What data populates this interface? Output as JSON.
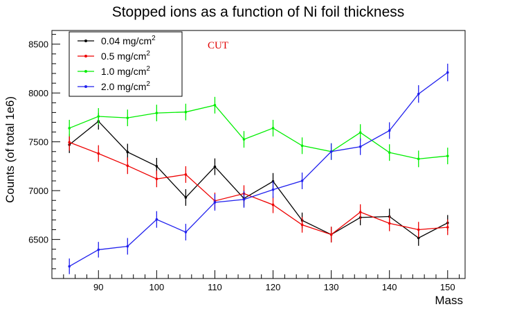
{
  "chart_data": {
    "type": "line",
    "title": "Stopped ions as a function of Ni foil thickness",
    "xlabel": "Mass",
    "ylabel": "Counts (of total 1e6)",
    "xlim": [
      82,
      153
    ],
    "ylim": [
      6100,
      8640
    ],
    "xticks": [
      90,
      100,
      110,
      120,
      130,
      140,
      150
    ],
    "yticks": [
      6500,
      7000,
      7500,
      8000,
      8500
    ],
    "grid": false,
    "legend_position": "top-left",
    "annotation": {
      "text": "CUT",
      "color": "#e00000"
    },
    "x": [
      85,
      90,
      95,
      100,
      105,
      110,
      115,
      120,
      125,
      130,
      135,
      140,
      145,
      150
    ],
    "series": [
      {
        "name_main": "0.04 mg/cm",
        "name_sup": "2",
        "color": "#000000",
        "values": [
          7470,
          7710,
          7395,
          7250,
          6930,
          7245,
          6920,
          7095,
          6695,
          6550,
          6725,
          6735,
          6515,
          6670
        ],
        "errors": [
          85,
          85,
          85,
          85,
          85,
          85,
          85,
          85,
          80,
          80,
          80,
          80,
          80,
          80
        ]
      },
      {
        "name_main": "0.5 mg/cm",
        "name_sup": "2",
        "color": "#ee0000",
        "values": [
          7495,
          7380,
          7255,
          7120,
          7165,
          6895,
          6970,
          6855,
          6650,
          6550,
          6780,
          6665,
          6600,
          6625
        ],
        "errors": [
          85,
          85,
          85,
          85,
          85,
          85,
          85,
          85,
          80,
          80,
          80,
          80,
          80,
          80
        ]
      },
      {
        "name_main": "1.0 mg/cm",
        "name_sup": "2",
        "color": "#00ee00",
        "values": [
          7640,
          7760,
          7745,
          7795,
          7805,
          7875,
          7525,
          7640,
          7460,
          7400,
          7595,
          7390,
          7325,
          7355
        ],
        "errors": [
          85,
          85,
          85,
          85,
          85,
          85,
          85,
          85,
          85,
          85,
          85,
          85,
          85,
          85
        ]
      },
      {
        "name_main": "2.0 mg/cm",
        "name_sup": "2",
        "color": "#2020ee",
        "values": [
          6225,
          6395,
          6430,
          6705,
          6575,
          6880,
          6910,
          7010,
          7100,
          7400,
          7450,
          7615,
          7990,
          8210
        ],
        "errors": [
          80,
          80,
          85,
          85,
          85,
          85,
          85,
          85,
          85,
          85,
          85,
          85,
          90,
          90
        ]
      }
    ]
  }
}
